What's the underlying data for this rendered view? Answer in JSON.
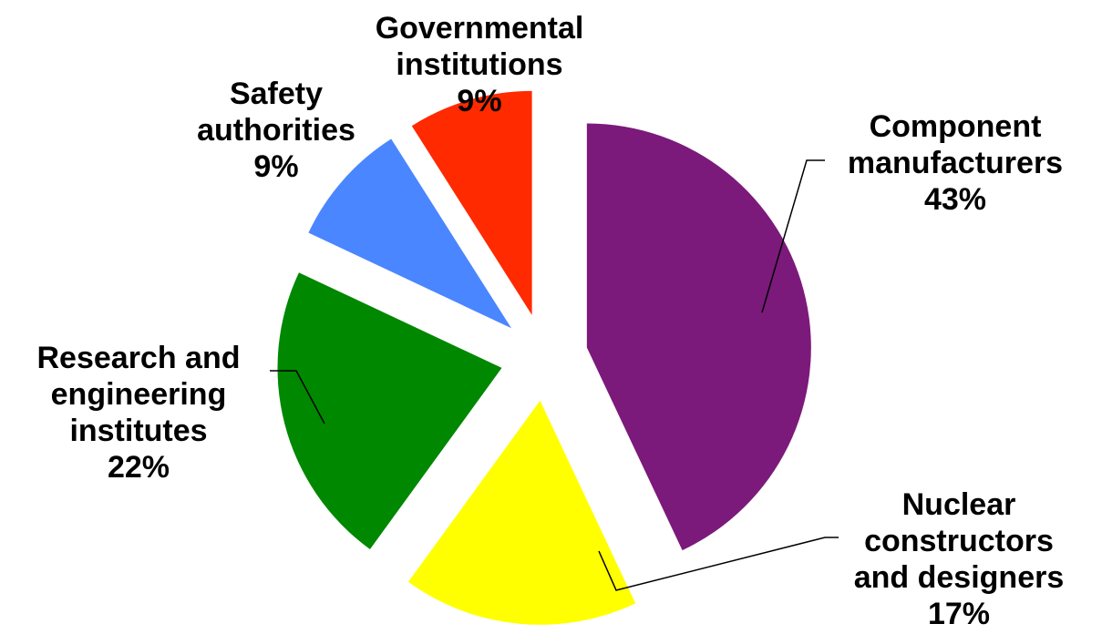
{
  "chart_data": {
    "type": "pie",
    "exploded": true,
    "slices": [
      {
        "lines": [
          "Component",
          "manufacturers"
        ],
        "pct_label": "43%",
        "value": 43,
        "color": "#7B1A7B"
      },
      {
        "lines": [
          "Nuclear",
          "constructors",
          "and designers"
        ],
        "pct_label": "17%",
        "value": 17,
        "color": "#FFFF00"
      },
      {
        "lines": [
          "Research and",
          "engineering",
          "institutes"
        ],
        "pct_label": "22%",
        "value": 22,
        "color": "#008800"
      },
      {
        "lines": [
          "Safety",
          "authorities"
        ],
        "pct_label": "9%",
        "value": 9,
        "color": "#4A86FF"
      },
      {
        "lines": [
          "Governmental",
          "institutions"
        ],
        "pct_label": "9%",
        "value": 9,
        "color": "#FF2A00"
      }
    ]
  }
}
